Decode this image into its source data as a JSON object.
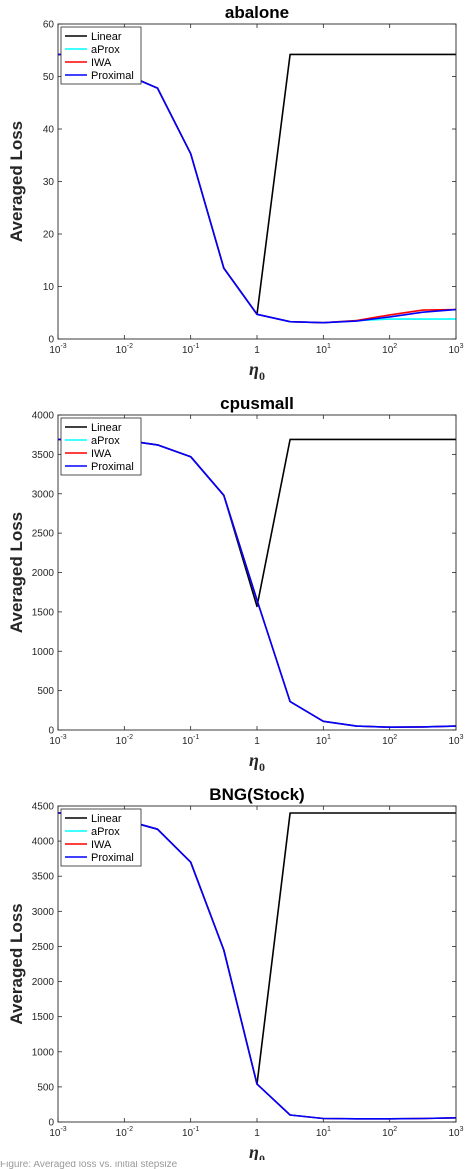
{
  "chart_data": [
    {
      "type": "line",
      "title": "abalone",
      "xlabel": "η",
      "xlabel_subscript": "0",
      "ylabel": "Averaged Loss",
      "xscale": "log",
      "xlim": [
        0.001,
        1000
      ],
      "ylim": [
        0,
        60
      ],
      "yticks": [
        0,
        10,
        20,
        30,
        40,
        50,
        60
      ],
      "xticks": [
        {
          "value": 0.001,
          "base": "10",
          "exp": "-3"
        },
        {
          "value": 0.01,
          "base": "10",
          "exp": "-2"
        },
        {
          "value": 0.1,
          "base": "10",
          "exp": "-1"
        },
        {
          "value": 1,
          "base": "1",
          "exp": ""
        },
        {
          "value": 10,
          "base": "10",
          "exp": "1"
        },
        {
          "value": 100,
          "base": "10",
          "exp": "2"
        },
        {
          "value": 1000,
          "base": "10",
          "exp": "3"
        }
      ],
      "legend_position": "top-left",
      "x": [
        0.001,
        0.00316,
        0.01,
        0.0316,
        0.1,
        0.316,
        1,
        3.16,
        10,
        31.6,
        100,
        316,
        1000
      ],
      "series": [
        {
          "name": "Linear",
          "color": "#000000",
          "values": [
            54.2,
            54.2,
            50.5,
            47.8,
            35.3,
            13.5,
            4.7,
            54.2,
            54.2,
            54.2,
            54.2,
            54.2,
            54.2
          ]
        },
        {
          "name": "aProx",
          "color": "#00ffff",
          "values": [
            54.2,
            54.2,
            50.5,
            47.8,
            35.3,
            13.5,
            4.7,
            3.3,
            3.1,
            3.5,
            3.8,
            3.8,
            3.8
          ]
        },
        {
          "name": "IWA",
          "color": "#ff0000",
          "values": [
            54.2,
            54.2,
            50.5,
            47.8,
            35.3,
            13.5,
            4.7,
            3.3,
            3.1,
            3.5,
            4.6,
            5.5,
            5.6
          ]
        },
        {
          "name": "Proximal",
          "color": "#0000ff",
          "values": [
            54.2,
            54.2,
            50.5,
            47.8,
            35.3,
            13.5,
            4.7,
            3.3,
            3.1,
            3.4,
            4.2,
            5.1,
            5.6
          ]
        }
      ]
    },
    {
      "type": "line",
      "title": "cpusmall",
      "xlabel": "η",
      "xlabel_subscript": "0",
      "ylabel": "Averaged Loss",
      "xscale": "log",
      "xlim": [
        0.001,
        1000
      ],
      "ylim": [
        0,
        4000
      ],
      "yticks": [
        0,
        500,
        1000,
        1500,
        2000,
        2500,
        3000,
        3500,
        4000
      ],
      "xticks": [
        {
          "value": 0.001,
          "base": "10",
          "exp": "-3"
        },
        {
          "value": 0.01,
          "base": "10",
          "exp": "-2"
        },
        {
          "value": 0.1,
          "base": "10",
          "exp": "-1"
        },
        {
          "value": 1,
          "base": "1",
          "exp": ""
        },
        {
          "value": 10,
          "base": "10",
          "exp": "1"
        },
        {
          "value": 100,
          "base": "10",
          "exp": "2"
        },
        {
          "value": 1000,
          "base": "10",
          "exp": "3"
        }
      ],
      "legend_position": "top-left",
      "x": [
        0.001,
        0.00316,
        0.01,
        0.0316,
        0.1,
        0.316,
        1,
        3.16,
        10,
        31.6,
        100,
        316,
        1000
      ],
      "series": [
        {
          "name": "Linear",
          "color": "#000000",
          "values": [
            3690,
            3690,
            3680,
            3620,
            3470,
            2980,
            1570,
            3690,
            3690,
            3690,
            3690,
            3690,
            3690
          ]
        },
        {
          "name": "aProx",
          "color": "#00ffff",
          "values": [
            3690,
            3690,
            3680,
            3620,
            3470,
            2980,
            1650,
            360,
            110,
            50,
            35,
            40,
            50
          ]
        },
        {
          "name": "IWA",
          "color": "#ff0000",
          "values": [
            3690,
            3690,
            3680,
            3620,
            3470,
            2980,
            1650,
            360,
            110,
            50,
            35,
            40,
            50
          ]
        },
        {
          "name": "Proximal",
          "color": "#0000ff",
          "values": [
            3690,
            3690,
            3680,
            3620,
            3470,
            2980,
            1650,
            360,
            110,
            50,
            35,
            40,
            50
          ]
        }
      ]
    },
    {
      "type": "line",
      "title": "BNG(Stock)",
      "xlabel": "η",
      "xlabel_subscript": "0",
      "ylabel": "Averaged Loss",
      "xscale": "log",
      "xlim": [
        0.001,
        1000
      ],
      "ylim": [
        0,
        4500
      ],
      "yticks": [
        0,
        500,
        1000,
        1500,
        2000,
        2500,
        3000,
        3500,
        4000,
        4500
      ],
      "xticks": [
        {
          "value": 0.001,
          "base": "10",
          "exp": "-3"
        },
        {
          "value": 0.01,
          "base": "10",
          "exp": "-2"
        },
        {
          "value": 0.1,
          "base": "10",
          "exp": "-1"
        },
        {
          "value": 1,
          "base": "1",
          "exp": ""
        },
        {
          "value": 10,
          "base": "10",
          "exp": "1"
        },
        {
          "value": 100,
          "base": "10",
          "exp": "2"
        },
        {
          "value": 1000,
          "base": "10",
          "exp": "3"
        }
      ],
      "legend_position": "top-left",
      "x": [
        0.001,
        0.00316,
        0.01,
        0.0316,
        0.1,
        0.316,
        1,
        3.16,
        10,
        31.6,
        100,
        316,
        1000
      ],
      "series": [
        {
          "name": "Linear",
          "color": "#000000",
          "values": [
            4400,
            4400,
            4300,
            4170,
            3700,
            2450,
            540,
            4400,
            4400,
            4400,
            4400,
            4400,
            4400
          ]
        },
        {
          "name": "aProx",
          "color": "#00ffff",
          "values": [
            4400,
            4400,
            4300,
            4170,
            3700,
            2450,
            540,
            100,
            50,
            45,
            45,
            50,
            60
          ]
        },
        {
          "name": "IWA",
          "color": "#ff0000",
          "values": [
            4400,
            4400,
            4300,
            4170,
            3700,
            2450,
            540,
            100,
            50,
            45,
            45,
            50,
            60
          ]
        },
        {
          "name": "Proximal",
          "color": "#0000ff",
          "values": [
            4400,
            4400,
            4300,
            4170,
            3700,
            2450,
            540,
            100,
            50,
            45,
            45,
            50,
            60
          ]
        }
      ]
    }
  ],
  "footer_text": "Figure: Averaged loss vs. initial stepsize"
}
